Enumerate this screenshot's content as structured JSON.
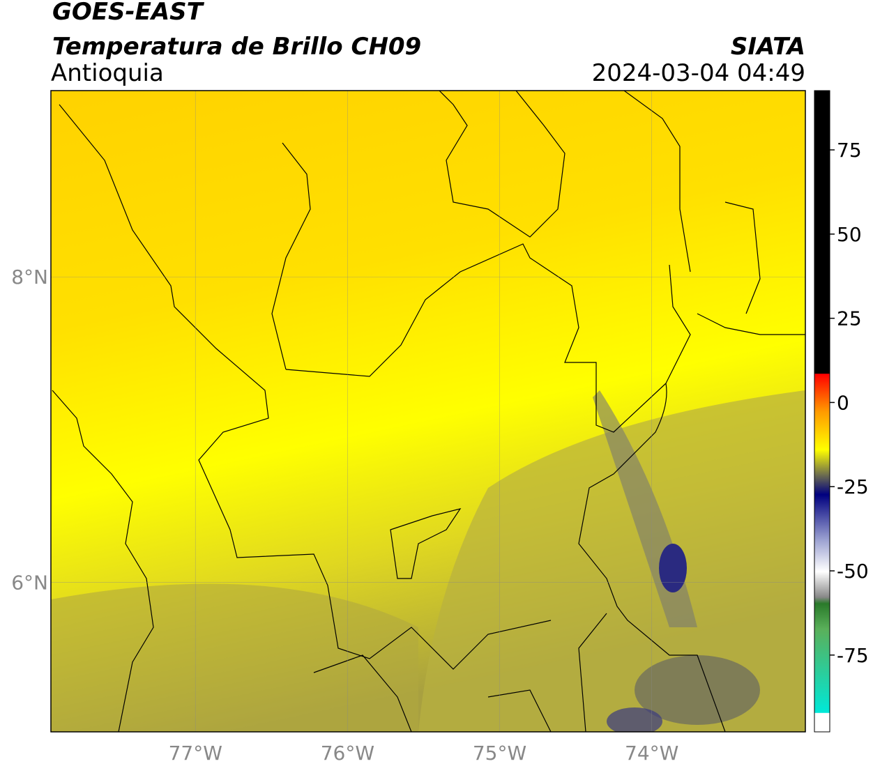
{
  "header": {
    "title": "GOES-EAST",
    "subtitle": "Temperatura de Brillo CH09",
    "region": "Antioquia",
    "source": "SIATA",
    "datetime": "2024-03-04 04:49"
  },
  "map": {
    "xlim": [
      -77.95,
      -72.99
    ],
    "ylim": [
      5.02,
      9.22
    ],
    "xticks": [
      {
        "value": -77,
        "label": "77°W"
      },
      {
        "value": -76,
        "label": "76°W"
      },
      {
        "value": -75,
        "label": "75°W"
      },
      {
        "value": -74,
        "label": "74°W"
      }
    ],
    "yticks": [
      {
        "value": 6,
        "label": "6°N"
      },
      {
        "value": 8,
        "label": "8°N"
      }
    ],
    "grid": true
  },
  "colorbar": {
    "clim": [
      -97.8,
      92.6
    ],
    "ticks": [
      75,
      50,
      25,
      0,
      -25,
      -50,
      -75
    ]
  }
}
